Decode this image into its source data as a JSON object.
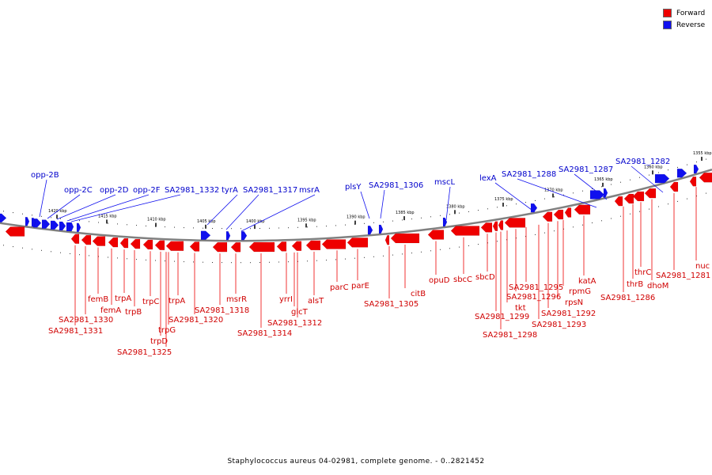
{
  "caption": "Staphylococcus aureus 04-02981, complete genome. - 0..2821452",
  "legend": [
    {
      "label": "Forward",
      "color": "#ee0000"
    },
    {
      "label": "Reverse",
      "color": "#1010ee"
    }
  ],
  "ticks": [
    "1420 kbp",
    "1415 kbp",
    "1410 kbp",
    "1405 kbp",
    "1400 kbp",
    "1395 kbp",
    "1390 kbp",
    "1385 kbp",
    "1380 kbp",
    "1375 kbp",
    "1370 kbp",
    "1365 kbp",
    "1360 kbp",
    "1355 kbp"
  ],
  "reverse_labels": [
    "opp-2B",
    "opp-2C",
    "opp-2D",
    "opp-2F",
    "SA2981_1332",
    "tyrA",
    "SA2981_1317",
    "msrA",
    "plsY",
    "SA2981_1306",
    "mscL",
    "lexA",
    "SA2981_1288",
    "SA2981_1287",
    "SA2981_1282"
  ],
  "forward_labels": [
    "SA2981_1330",
    "SA2981_1331",
    "femB",
    "femA",
    "trpA",
    "trpB",
    "trpC",
    "trpD",
    "trpG",
    "SA2981_1325",
    "trpA",
    "SA2981_1320",
    "SA2981_1318",
    "msrR",
    "SA2981_1314",
    "yrrI",
    "glcT",
    "SA2981_1312",
    "alsT",
    "parC",
    "parE",
    "SA2981_1305",
    "citB",
    "opuD",
    "sbcC",
    "sbcD",
    "SA2981_1299",
    "SA2981_1298",
    "tkt",
    "SA2981_1296",
    "SA2981_1295",
    "rpsN",
    "SA2981_1293",
    "rpmG",
    "SA2981_1292",
    "katA",
    "SA2981_1286",
    "thrB",
    "thrC",
    "dhoM",
    "SA2981_1281",
    "nuc"
  ]
}
